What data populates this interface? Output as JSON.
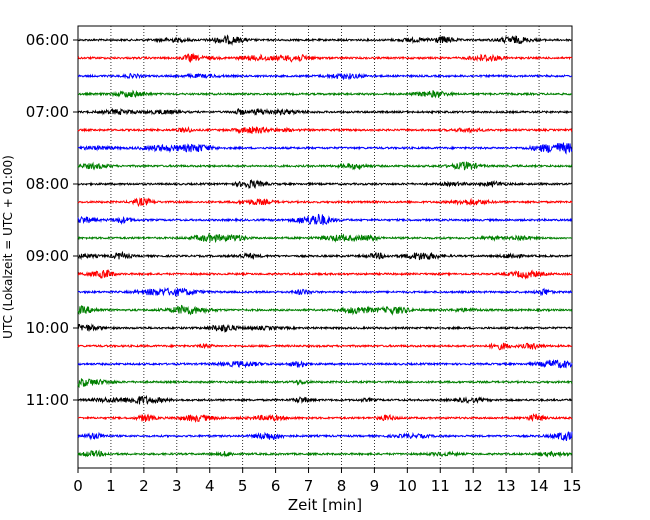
{
  "chart_data": {
    "type": "line",
    "title": "",
    "xlabel": "Zeit  [min]",
    "ylabel": "UTC (Lokalzeit = UTC + 01:00)",
    "xlim": [
      0,
      15
    ],
    "x_ticks": [
      "0",
      "1",
      "2",
      "3",
      "4",
      "5",
      "6",
      "7",
      "8",
      "9",
      "10",
      "11",
      "12",
      "13",
      "14",
      "15"
    ],
    "y_tick_labels": [
      "06:00",
      "07:00",
      "08:00",
      "09:00",
      "10:00",
      "11:00"
    ],
    "grid": "vertical dotted lines at each minute",
    "trace_interval_minutes": 15,
    "trace_color_cycle": [
      "#000000",
      "#ff0000",
      "#0000ff",
      "#008000"
    ],
    "series": [
      {
        "start": "06:00"
      },
      {
        "start": "06:15"
      },
      {
        "start": "06:30"
      },
      {
        "start": "06:45"
      },
      {
        "start": "07:00"
      },
      {
        "start": "07:15"
      },
      {
        "start": "07:30"
      },
      {
        "start": "07:45"
      },
      {
        "start": "08:00"
      },
      {
        "start": "08:15"
      },
      {
        "start": "08:30"
      },
      {
        "start": "08:45"
      },
      {
        "start": "09:00"
      },
      {
        "start": "09:15"
      },
      {
        "start": "09:30"
      },
      {
        "start": "09:45"
      },
      {
        "start": "10:00"
      },
      {
        "start": "10:15"
      },
      {
        "start": "10:30"
      },
      {
        "start": "10:45"
      },
      {
        "start": "11:00"
      },
      {
        "start": "11:15"
      },
      {
        "start": "11:30"
      },
      {
        "start": "11:45"
      }
    ]
  }
}
